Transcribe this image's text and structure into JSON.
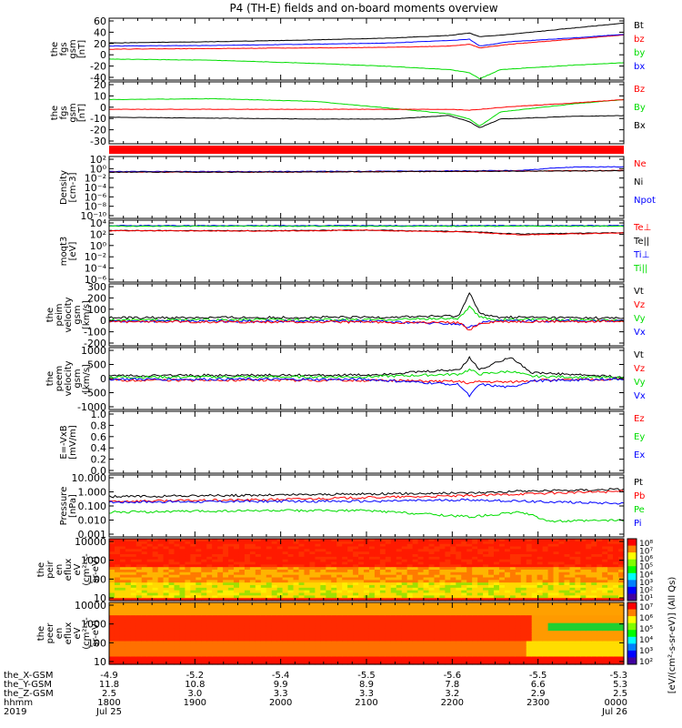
{
  "title": "P4 (TH-E) fields and on-board moments overview",
  "colors": {
    "black": "#000000",
    "red": "#ff0000",
    "green": "#00dd00",
    "blue": "#0000ff"
  },
  "chart_data": [
    {
      "id": "fgs_gsm",
      "type": "line",
      "ylabel_lines": [
        "the",
        "fgs",
        "gsm",
        "[nT]"
      ],
      "ylim": [
        -40,
        60
      ],
      "yticks": [
        "60",
        "40",
        "20",
        "0",
        "-20",
        "-40"
      ],
      "legend": [
        {
          "name": "Bt",
          "color": "black"
        },
        {
          "name": "bz",
          "color": "red"
        },
        {
          "name": "by",
          "color": "green"
        },
        {
          "name": "bx",
          "color": "blue"
        }
      ],
      "series": [
        {
          "name": "Bt",
          "color": "black",
          "x": [
            0,
            0.2,
            0.4,
            0.55,
            0.66,
            0.7,
            0.72,
            0.78,
            0.9,
            1.0
          ],
          "y": [
            20,
            22,
            25,
            28,
            32,
            36,
            30,
            34,
            44,
            52
          ]
        },
        {
          "name": "bz",
          "color": "red",
          "x": [
            0,
            0.2,
            0.4,
            0.55,
            0.66,
            0.7,
            0.72,
            0.78,
            0.9,
            1.0
          ],
          "y": [
            10,
            11,
            12,
            13,
            15,
            18,
            12,
            18,
            26,
            33
          ]
        },
        {
          "name": "by",
          "color": "green",
          "x": [
            0,
            0.2,
            0.4,
            0.55,
            0.66,
            0.7,
            0.72,
            0.76,
            0.9,
            1.0
          ],
          "y": [
            -6,
            -8,
            -13,
            -18,
            -23,
            -28,
            -38,
            -23,
            -16,
            -12
          ]
        },
        {
          "name": "bx",
          "color": "blue",
          "x": [
            0,
            0.2,
            0.4,
            0.55,
            0.66,
            0.7,
            0.72,
            0.78,
            0.9,
            1.0
          ],
          "y": [
            15,
            16,
            18,
            20,
            24,
            26,
            15,
            22,
            28,
            34
          ]
        }
      ]
    },
    {
      "id": "fgs_gsm_2",
      "type": "line",
      "ylabel_lines": [
        "the",
        "fgs",
        "gsm",
        "[nT]"
      ],
      "ylim": [
        -40,
        30
      ],
      "yticks": [
        "20",
        "10",
        "0",
        "-10",
        "-20",
        "-30"
      ],
      "legend": [
        {
          "name": "Bz",
          "color": "red"
        },
        {
          "name": "By",
          "color": "green"
        },
        {
          "name": "Bx",
          "color": "black"
        }
      ],
      "series": [
        {
          "name": "By",
          "color": "green",
          "x": [
            0,
            0.2,
            0.4,
            0.55,
            0.66,
            0.7,
            0.72,
            0.76,
            0.9,
            1.0
          ],
          "y": [
            10,
            11,
            8,
            0,
            -6,
            -12,
            -20,
            -4,
            5,
            10
          ]
        },
        {
          "name": "Bz",
          "color": "red",
          "x": [
            0,
            0.2,
            0.4,
            0.55,
            0.66,
            0.7,
            0.72,
            0.78,
            0.9,
            1.0
          ],
          "y": [
            -1,
            -1,
            -1,
            -1,
            -1,
            -2,
            -1,
            2,
            6,
            10
          ]
        },
        {
          "name": "Bx",
          "color": "black",
          "x": [
            0,
            0.2,
            0.4,
            0.55,
            0.66,
            0.7,
            0.72,
            0.76,
            0.9,
            1.0
          ],
          "y": [
            -10,
            -11,
            -12,
            -12,
            -8,
            -15,
            -22,
            -12,
            -9,
            -8
          ]
        }
      ]
    },
    {
      "id": "density",
      "type": "line",
      "ylabel_lines": [
        "Density",
        "[cm-3]"
      ],
      "yscale": "log",
      "ylim": [
        1e-11,
        1000.0
      ],
      "yticks": [
        "10²",
        "10⁰",
        "10⁻²",
        "10⁻⁴",
        "10⁻⁶",
        "10⁻⁸",
        "10⁻¹⁰"
      ],
      "legend": [
        {
          "name": "Ne",
          "color": "red"
        },
        {
          "name": "Ni",
          "color": "black"
        },
        {
          "name": "Npot",
          "color": "blue"
        }
      ],
      "series": [
        {
          "name": "Npot",
          "color": "blue",
          "x": [
            0,
            0.3,
            0.6,
            0.8,
            0.85,
            0.9,
            1.0
          ],
          "y": [
            0.4,
            0.4,
            0.5,
            0.7,
            2,
            4,
            5
          ]
        },
        {
          "name": "Ne",
          "color": "red",
          "x": [
            0,
            0.3,
            0.6,
            0.8,
            0.9,
            1.0
          ],
          "y": [
            0.3,
            0.3,
            0.4,
            0.5,
            0.6,
            0.7
          ]
        },
        {
          "name": "Ni",
          "color": "black",
          "x": [
            0,
            0.3,
            0.6,
            0.8,
            1.0
          ],
          "y": [
            0.3,
            0.3,
            0.4,
            0.5,
            0.6
          ]
        }
      ]
    },
    {
      "id": "moms",
      "type": "line",
      "ylabel_lines": [
        "moqt3",
        "[eV]"
      ],
      "yscale": "log",
      "ylim": [
        1e-07,
        100000.0
      ],
      "yticks": [
        "10⁴",
        "10²",
        "10⁰",
        "10⁻²",
        "10⁻⁴",
        "10⁻⁶"
      ],
      "legend": [
        {
          "name": "Te⊥",
          "color": "red"
        },
        {
          "name": "Te||",
          "color": "black"
        },
        {
          "name": "Ti⊥",
          "color": "blue"
        },
        {
          "name": "Ti||",
          "color": "green"
        }
      ],
      "series": [
        {
          "name": "Ti⊥",
          "color": "blue",
          "x": [
            0,
            0.5,
            1.0
          ],
          "y": [
            9000,
            9000,
            9000
          ]
        },
        {
          "name": "Ti||",
          "color": "green",
          "x": [
            0,
            0.5,
            1.0
          ],
          "y": [
            7000,
            7000,
            7000
          ]
        },
        {
          "name": "Te||",
          "color": "black",
          "x": [
            0,
            0.3,
            0.5,
            0.7,
            0.8,
            1.0
          ],
          "y": [
            1000,
            900,
            1200,
            600,
            200,
            400
          ]
        },
        {
          "name": "Te⊥",
          "color": "red",
          "x": [
            0,
            0.3,
            0.5,
            0.7,
            0.8,
            1.0
          ],
          "y": [
            900,
            800,
            1100,
            500,
            150,
            350
          ]
        }
      ]
    },
    {
      "id": "peim_velocity",
      "type": "line",
      "ylabel_lines": [
        "the",
        "peim",
        "velocity",
        "gsm",
        "[km/s]"
      ],
      "ylim": [
        -220,
        320
      ],
      "yticks": [
        "300",
        "200",
        "100",
        "0",
        "-100",
        "-200"
      ],
      "legend": [
        {
          "name": "Vt",
          "color": "black"
        },
        {
          "name": "Vz",
          "color": "red"
        },
        {
          "name": "Vy",
          "color": "green"
        },
        {
          "name": "Vx",
          "color": "blue"
        }
      ],
      "series": [
        {
          "name": "Vt",
          "color": "black",
          "x": [
            0,
            0.5,
            0.68,
            0.7,
            0.72,
            0.75,
            1.0
          ],
          "y": [
            25,
            28,
            40,
            250,
            60,
            30,
            20
          ]
        },
        {
          "name": "Vy",
          "color": "green",
          "x": [
            0,
            0.5,
            0.68,
            0.7,
            0.72,
            0.75,
            1.0
          ],
          "y": [
            5,
            8,
            20,
            120,
            30,
            10,
            5
          ]
        },
        {
          "name": "Vx",
          "color": "blue",
          "x": [
            0,
            0.5,
            0.68,
            0.7,
            0.72,
            0.75,
            1.0
          ],
          "y": [
            -5,
            -5,
            -30,
            -60,
            -20,
            -5,
            -2
          ]
        },
        {
          "name": "Vz",
          "color": "red",
          "x": [
            0,
            0.5,
            0.68,
            0.7,
            0.72,
            0.75,
            1.0
          ],
          "y": [
            -10,
            -12,
            -20,
            -80,
            -25,
            -10,
            -5
          ]
        }
      ]
    },
    {
      "id": "peem_velocity",
      "type": "line",
      "ylabel_lines": [
        "the",
        "peem",
        "velocity",
        "gsm",
        "[km/s]"
      ],
      "ylim": [
        -1050,
        1050
      ],
      "yticks": [
        "1000",
        "500",
        "0",
        "-500",
        "-1000"
      ],
      "legend": [
        {
          "name": "Vt",
          "color": "black"
        },
        {
          "name": "Vz",
          "color": "red"
        },
        {
          "name": "Vy",
          "color": "green"
        },
        {
          "name": "Vx",
          "color": "blue"
        }
      ],
      "series": [
        {
          "name": "Vt",
          "color": "black",
          "x": [
            0,
            0.5,
            0.68,
            0.7,
            0.72,
            0.78,
            0.82,
            1.0
          ],
          "y": [
            100,
            120,
            300,
            700,
            300,
            750,
            200,
            50
          ]
        },
        {
          "name": "Vy",
          "color": "green",
          "x": [
            0,
            0.5,
            0.68,
            0.7,
            0.72,
            0.78,
            0.82,
            1.0
          ],
          "y": [
            50,
            60,
            150,
            300,
            150,
            250,
            80,
            20
          ]
        },
        {
          "name": "Vz",
          "color": "red",
          "x": [
            0,
            0.5,
            0.68,
            0.7,
            0.72,
            0.78,
            0.82,
            1.0
          ],
          "y": [
            -60,
            -60,
            -100,
            -150,
            -100,
            -120,
            -60,
            -20
          ]
        },
        {
          "name": "Vx",
          "color": "blue",
          "x": [
            0,
            0.5,
            0.68,
            0.7,
            0.72,
            0.78,
            0.82,
            1.0
          ],
          "y": [
            -20,
            -30,
            -200,
            -600,
            -200,
            -300,
            -80,
            -10
          ]
        }
      ]
    },
    {
      "id": "efield",
      "type": "line",
      "ylabel_lines": [
        "E=-VxB",
        "[mV/m]"
      ],
      "ylim": [
        0,
        1
      ],
      "yticks": [
        "1.0",
        "0.8",
        "0.6",
        "0.4",
        "0.2",
        "0.0"
      ],
      "legend": [
        {
          "name": "Ez",
          "color": "red"
        },
        {
          "name": "Ey",
          "color": "green"
        },
        {
          "name": "Ex",
          "color": "blue"
        }
      ],
      "series": []
    },
    {
      "id": "pressure",
      "type": "line",
      "ylabel_lines": [
        "Pressure",
        "[nPa]"
      ],
      "yscale": "log",
      "ylim": [
        0.001,
        10
      ],
      "yticks": [
        "10.000",
        "1.000",
        "0.100",
        "0.010",
        "0.001"
      ],
      "legend": [
        {
          "name": "Pt",
          "color": "black"
        },
        {
          "name": "Pb",
          "color": "red"
        },
        {
          "name": "Pe",
          "color": "green"
        },
        {
          "name": "Pi",
          "color": "blue"
        }
      ],
      "series": [
        {
          "name": "Pt",
          "color": "black",
          "x": [
            0,
            0.3,
            0.5,
            0.7,
            0.8,
            1.0
          ],
          "y": [
            0.4,
            0.5,
            0.6,
            0.7,
            0.9,
            1.2
          ]
        },
        {
          "name": "Pb",
          "color": "red",
          "x": [
            0,
            0.3,
            0.5,
            0.7,
            0.8,
            1.0
          ],
          "y": [
            0.2,
            0.25,
            0.35,
            0.45,
            0.6,
            0.9
          ]
        },
        {
          "name": "Pi",
          "color": "blue",
          "x": [
            0,
            0.3,
            0.5,
            0.7,
            0.8,
            1.0
          ],
          "y": [
            0.18,
            0.2,
            0.2,
            0.25,
            0.2,
            0.15
          ]
        },
        {
          "name": "Pe",
          "color": "green",
          "x": [
            0,
            0.3,
            0.5,
            0.62,
            0.7,
            0.8,
            0.86,
            1.0
          ],
          "y": [
            0.04,
            0.05,
            0.05,
            0.03,
            0.02,
            0.04,
            0.01,
            0.012
          ]
        }
      ]
    },
    {
      "id": "peir_en_eflux",
      "type": "heatmap",
      "ylabel_lines": [
        "the",
        "peir",
        "en",
        "eflux",
        "eV",
        "(cm²-s-",
        "sr-eV)"
      ],
      "yscale": "log",
      "ylim": [
        5,
        30000
      ],
      "yticks": [
        "10000",
        "1000",
        "100",
        "10"
      ],
      "colorbar_ticks": [
        "10⁸",
        "10⁷",
        "10⁶",
        "10⁵",
        "10⁴",
        "10³",
        "10²",
        "10¹"
      ]
    },
    {
      "id": "peer_en_eflux",
      "type": "heatmap",
      "ylabel_lines": [
        "the",
        "peer",
        "en",
        "eflux",
        "eV",
        "(cm²-s-",
        "sr-eV)"
      ],
      "yscale": "log",
      "ylim": [
        5,
        30000
      ],
      "yticks": [
        "10000",
        "1000",
        "100",
        "10"
      ],
      "colorbar_ticks": [
        "10⁷",
        "10⁶",
        "10⁵",
        "10⁴",
        "10³",
        "10²"
      ]
    }
  ],
  "colorbar_label": "[eV/(cm²-s-sr-eV)] (All Qs)",
  "xaxis": {
    "row_labels": [
      "the_X-GSM",
      "the_Y-GSM",
      "the_Z-GSM",
      "hhmm",
      "2019"
    ],
    "ticks": [
      {
        "vals": [
          "-4.9",
          "11.8",
          "2.5",
          "1800",
          "Jul 25"
        ]
      },
      {
        "vals": [
          "-5.2",
          "10.8",
          "3.0",
          "1900",
          ""
        ]
      },
      {
        "vals": [
          "-5.4",
          "9.9",
          "3.3",
          "2000",
          ""
        ]
      },
      {
        "vals": [
          "-5.5",
          "8.9",
          "3.3",
          "2100",
          ""
        ]
      },
      {
        "vals": [
          "-5.6",
          "7.8",
          "3.2",
          "2200",
          ""
        ]
      },
      {
        "vals": [
          "-5.5",
          "6.6",
          "2.9",
          "2300",
          ""
        ]
      },
      {
        "vals": [
          "-5.3",
          "5.3",
          "2.5",
          "0000",
          "Jul 26"
        ]
      }
    ]
  }
}
